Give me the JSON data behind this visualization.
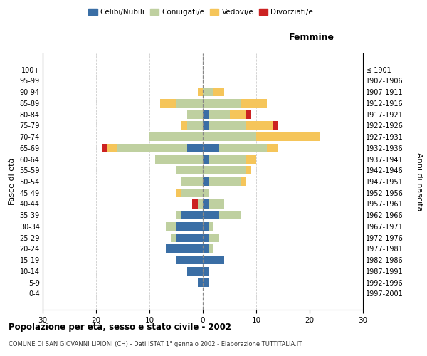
{
  "age_groups": [
    "0-4",
    "5-9",
    "10-14",
    "15-19",
    "20-24",
    "25-29",
    "30-34",
    "35-39",
    "40-44",
    "45-49",
    "50-54",
    "55-59",
    "60-64",
    "65-69",
    "70-74",
    "75-79",
    "80-84",
    "85-89",
    "90-94",
    "95-99",
    "100+"
  ],
  "birth_years": [
    "1997-2001",
    "1992-1996",
    "1987-1991",
    "1982-1986",
    "1977-1981",
    "1972-1976",
    "1967-1971",
    "1962-1966",
    "1957-1961",
    "1952-1956",
    "1947-1951",
    "1942-1946",
    "1937-1941",
    "1932-1936",
    "1927-1931",
    "1922-1926",
    "1917-1921",
    "1912-1916",
    "1907-1911",
    "1902-1906",
    "≤ 1901"
  ],
  "male_celibinubili": [
    0,
    1,
    3,
    5,
    7,
    5,
    5,
    4,
    0,
    0,
    0,
    0,
    0,
    3,
    0,
    0,
    0,
    0,
    0,
    0,
    0
  ],
  "male_coniugati": [
    0,
    0,
    0,
    0,
    0,
    1,
    2,
    1,
    1,
    4,
    4,
    5,
    9,
    13,
    10,
    3,
    3,
    5,
    0,
    0,
    0
  ],
  "male_vedovi": [
    0,
    0,
    0,
    0,
    0,
    0,
    0,
    0,
    0,
    1,
    0,
    0,
    0,
    2,
    0,
    1,
    0,
    3,
    1,
    0,
    0
  ],
  "male_divorziati": [
    0,
    0,
    0,
    0,
    0,
    0,
    0,
    0,
    1,
    0,
    0,
    0,
    0,
    1,
    0,
    0,
    0,
    0,
    0,
    0,
    0
  ],
  "female_celibinubili": [
    0,
    1,
    1,
    4,
    1,
    1,
    1,
    3,
    1,
    0,
    1,
    0,
    1,
    3,
    0,
    1,
    1,
    0,
    0,
    0,
    0
  ],
  "female_coniugati": [
    0,
    0,
    0,
    0,
    1,
    2,
    1,
    4,
    3,
    1,
    6,
    8,
    7,
    9,
    10,
    7,
    4,
    7,
    2,
    0,
    0
  ],
  "female_vedovi": [
    0,
    0,
    0,
    0,
    0,
    0,
    0,
    0,
    0,
    0,
    1,
    1,
    2,
    2,
    12,
    5,
    3,
    5,
    2,
    0,
    0
  ],
  "female_divorziati": [
    0,
    0,
    0,
    0,
    0,
    0,
    0,
    0,
    0,
    0,
    0,
    0,
    0,
    0,
    0,
    1,
    1,
    0,
    0,
    0,
    0
  ],
  "color_celibinubili": "#3a6ea5",
  "color_coniugati": "#bfd0a0",
  "color_vedovi": "#f5c55a",
  "color_divorziati": "#cc2222",
  "xlim": 30,
  "title": "Popolazione per età, sesso e stato civile - 2002",
  "subtitle": "COMUNE DI SAN GIOVANNI LIPIONI (CH) - Dati ISTAT 1° gennaio 2002 - Elaborazione TUTTITALIA.IT",
  "ylabel_left": "Fasce di età",
  "ylabel_right": "Anni di nascita",
  "xlabel_female": "Femmine"
}
